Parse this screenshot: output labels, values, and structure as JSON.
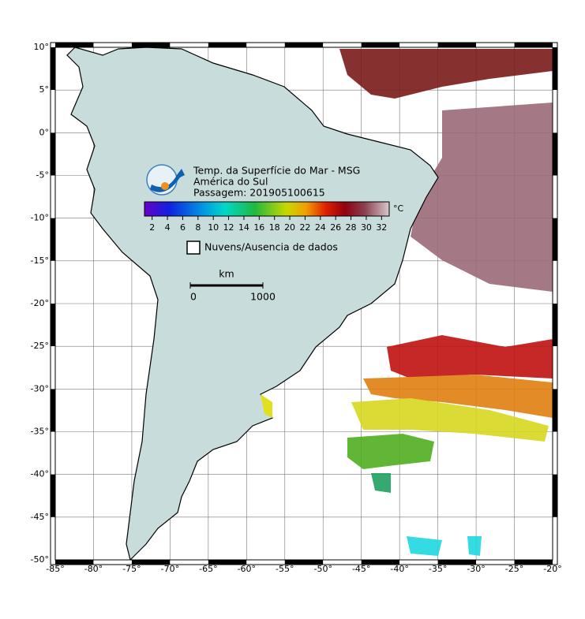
{
  "map": {
    "title": "Temp. da Superfície do Mar - MSG",
    "region": "América do Sul",
    "pass": "Passagem: 201905100615",
    "lon_range": [
      -85,
      -20
    ],
    "lat_range": [
      -50,
      10
    ],
    "lon_ticks": [
      {
        "value": -85,
        "label": "-85°"
      },
      {
        "value": -80,
        "label": "-80°"
      },
      {
        "value": -75,
        "label": "-75°"
      },
      {
        "value": -70,
        "label": "-70°"
      },
      {
        "value": -65,
        "label": "-65°"
      },
      {
        "value": -60,
        "label": "-60°"
      },
      {
        "value": -55,
        "label": "-55°"
      },
      {
        "value": -50,
        "label": "-50°"
      },
      {
        "value": -45,
        "label": "-45°"
      },
      {
        "value": -40,
        "label": "-40°"
      },
      {
        "value": -35,
        "label": "-35°"
      },
      {
        "value": -30,
        "label": "-30°"
      },
      {
        "value": -25,
        "label": "-25°"
      },
      {
        "value": -20,
        "label": "-20°"
      }
    ],
    "lat_ticks": [
      {
        "value": 10,
        "label": "10°"
      },
      {
        "value": 5,
        "label": "5°"
      },
      {
        "value": 0,
        "label": "0°"
      },
      {
        "value": -5,
        "label": "-5°"
      },
      {
        "value": -10,
        "label": "-10°"
      },
      {
        "value": -15,
        "label": "-15°"
      },
      {
        "value": -20,
        "label": "-20°"
      },
      {
        "value": -25,
        "label": "-25°"
      },
      {
        "value": -30,
        "label": "-30°"
      },
      {
        "value": -35,
        "label": "-35°"
      },
      {
        "value": -40,
        "label": "-40°"
      },
      {
        "value": -45,
        "label": "-45°"
      },
      {
        "value": -50,
        "label": "-50°"
      }
    ],
    "colorbar": {
      "unit": "°C",
      "range": [
        1,
        33
      ],
      "ticks": [
        2,
        4,
        6,
        8,
        10,
        12,
        14,
        16,
        18,
        20,
        22,
        24,
        26,
        28,
        30,
        32
      ]
    },
    "legend": "Nuvens/Ausencia de dados",
    "scale": {
      "unit": "km",
      "range": [
        0,
        1000
      ],
      "ticks": [
        0,
        1000
      ]
    }
  }
}
